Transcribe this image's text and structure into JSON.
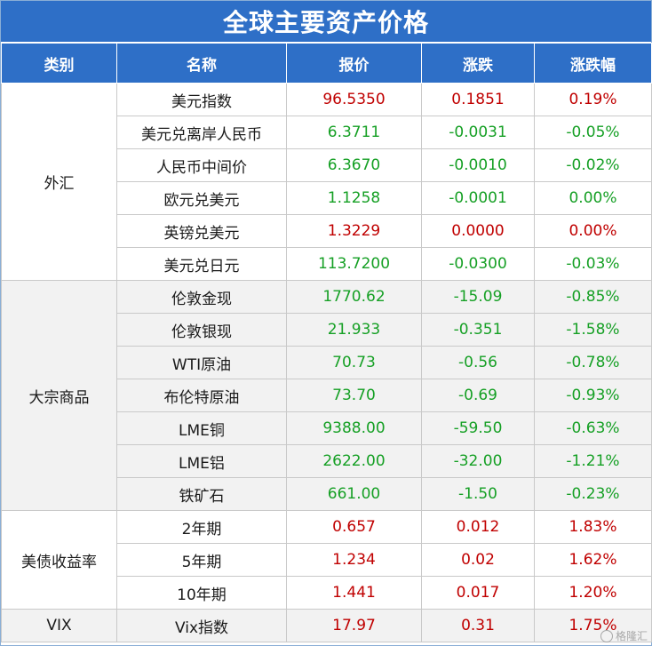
{
  "title": "全球主要资产价格",
  "headers": [
    "类别",
    "名称",
    "报价",
    "涨跌",
    "涨跌幅"
  ],
  "colors": {
    "header_bg": "#2e6fc7",
    "up": "#c00000",
    "down": "#16a025"
  },
  "groups": [
    {
      "category": "外汇",
      "rows": [
        {
          "name": "美元指数",
          "price": "96.5350",
          "change": "0.1851",
          "pct": "0.19%",
          "trend": "up"
        },
        {
          "name": "美元兑离岸人民币",
          "price": "6.3711",
          "change": "-0.0031",
          "pct": "-0.05%",
          "trend": "down"
        },
        {
          "name": "人民币中间价",
          "price": "6.3670",
          "change": "-0.0010",
          "pct": "-0.02%",
          "trend": "down"
        },
        {
          "name": "欧元兑美元",
          "price": "1.1258",
          "change": "-0.0001",
          "pct": "0.00%",
          "trend": "down"
        },
        {
          "name": "英镑兑美元",
          "price": "1.3229",
          "change": "0.0000",
          "pct": "0.00%",
          "trend": "up"
        },
        {
          "name": "美元兑日元",
          "price": "113.7200",
          "change": "-0.0300",
          "pct": "-0.03%",
          "trend": "down"
        }
      ]
    },
    {
      "category": "大宗商品",
      "rows": [
        {
          "name": "伦敦金现",
          "price": "1770.62",
          "change": "-15.09",
          "pct": "-0.85%",
          "trend": "down"
        },
        {
          "name": "伦敦银现",
          "price": "21.933",
          "change": "-0.351",
          "pct": "-1.58%",
          "trend": "down"
        },
        {
          "name": "WTI原油",
          "price": "70.73",
          "change": "-0.56",
          "pct": "-0.78%",
          "trend": "down"
        },
        {
          "name": "布伦特原油",
          "price": "73.70",
          "change": "-0.69",
          "pct": "-0.93%",
          "trend": "down"
        },
        {
          "name": "LME铜",
          "price": "9388.00",
          "change": "-59.50",
          "pct": "-0.63%",
          "trend": "down"
        },
        {
          "name": "LME铝",
          "price": "2622.00",
          "change": "-32.00",
          "pct": "-1.21%",
          "trend": "down"
        },
        {
          "name": "铁矿石",
          "price": "661.00",
          "change": "-1.50",
          "pct": "-0.23%",
          "trend": "down"
        }
      ]
    },
    {
      "category": "美债收益率",
      "rows": [
        {
          "name": "2年期",
          "price": "0.657",
          "change": "0.012",
          "pct": "1.83%",
          "trend": "up"
        },
        {
          "name": "5年期",
          "price": "1.234",
          "change": "0.02",
          "pct": "1.62%",
          "trend": "up"
        },
        {
          "name": "10年期",
          "price": "1.441",
          "change": "0.017",
          "pct": "1.20%",
          "trend": "up"
        }
      ]
    },
    {
      "category": "VIX",
      "rows": [
        {
          "name": "Vix指数",
          "price": "17.97",
          "change": "0.31",
          "pct": "1.75%",
          "trend": "up"
        }
      ]
    }
  ],
  "watermark": "格隆汇"
}
